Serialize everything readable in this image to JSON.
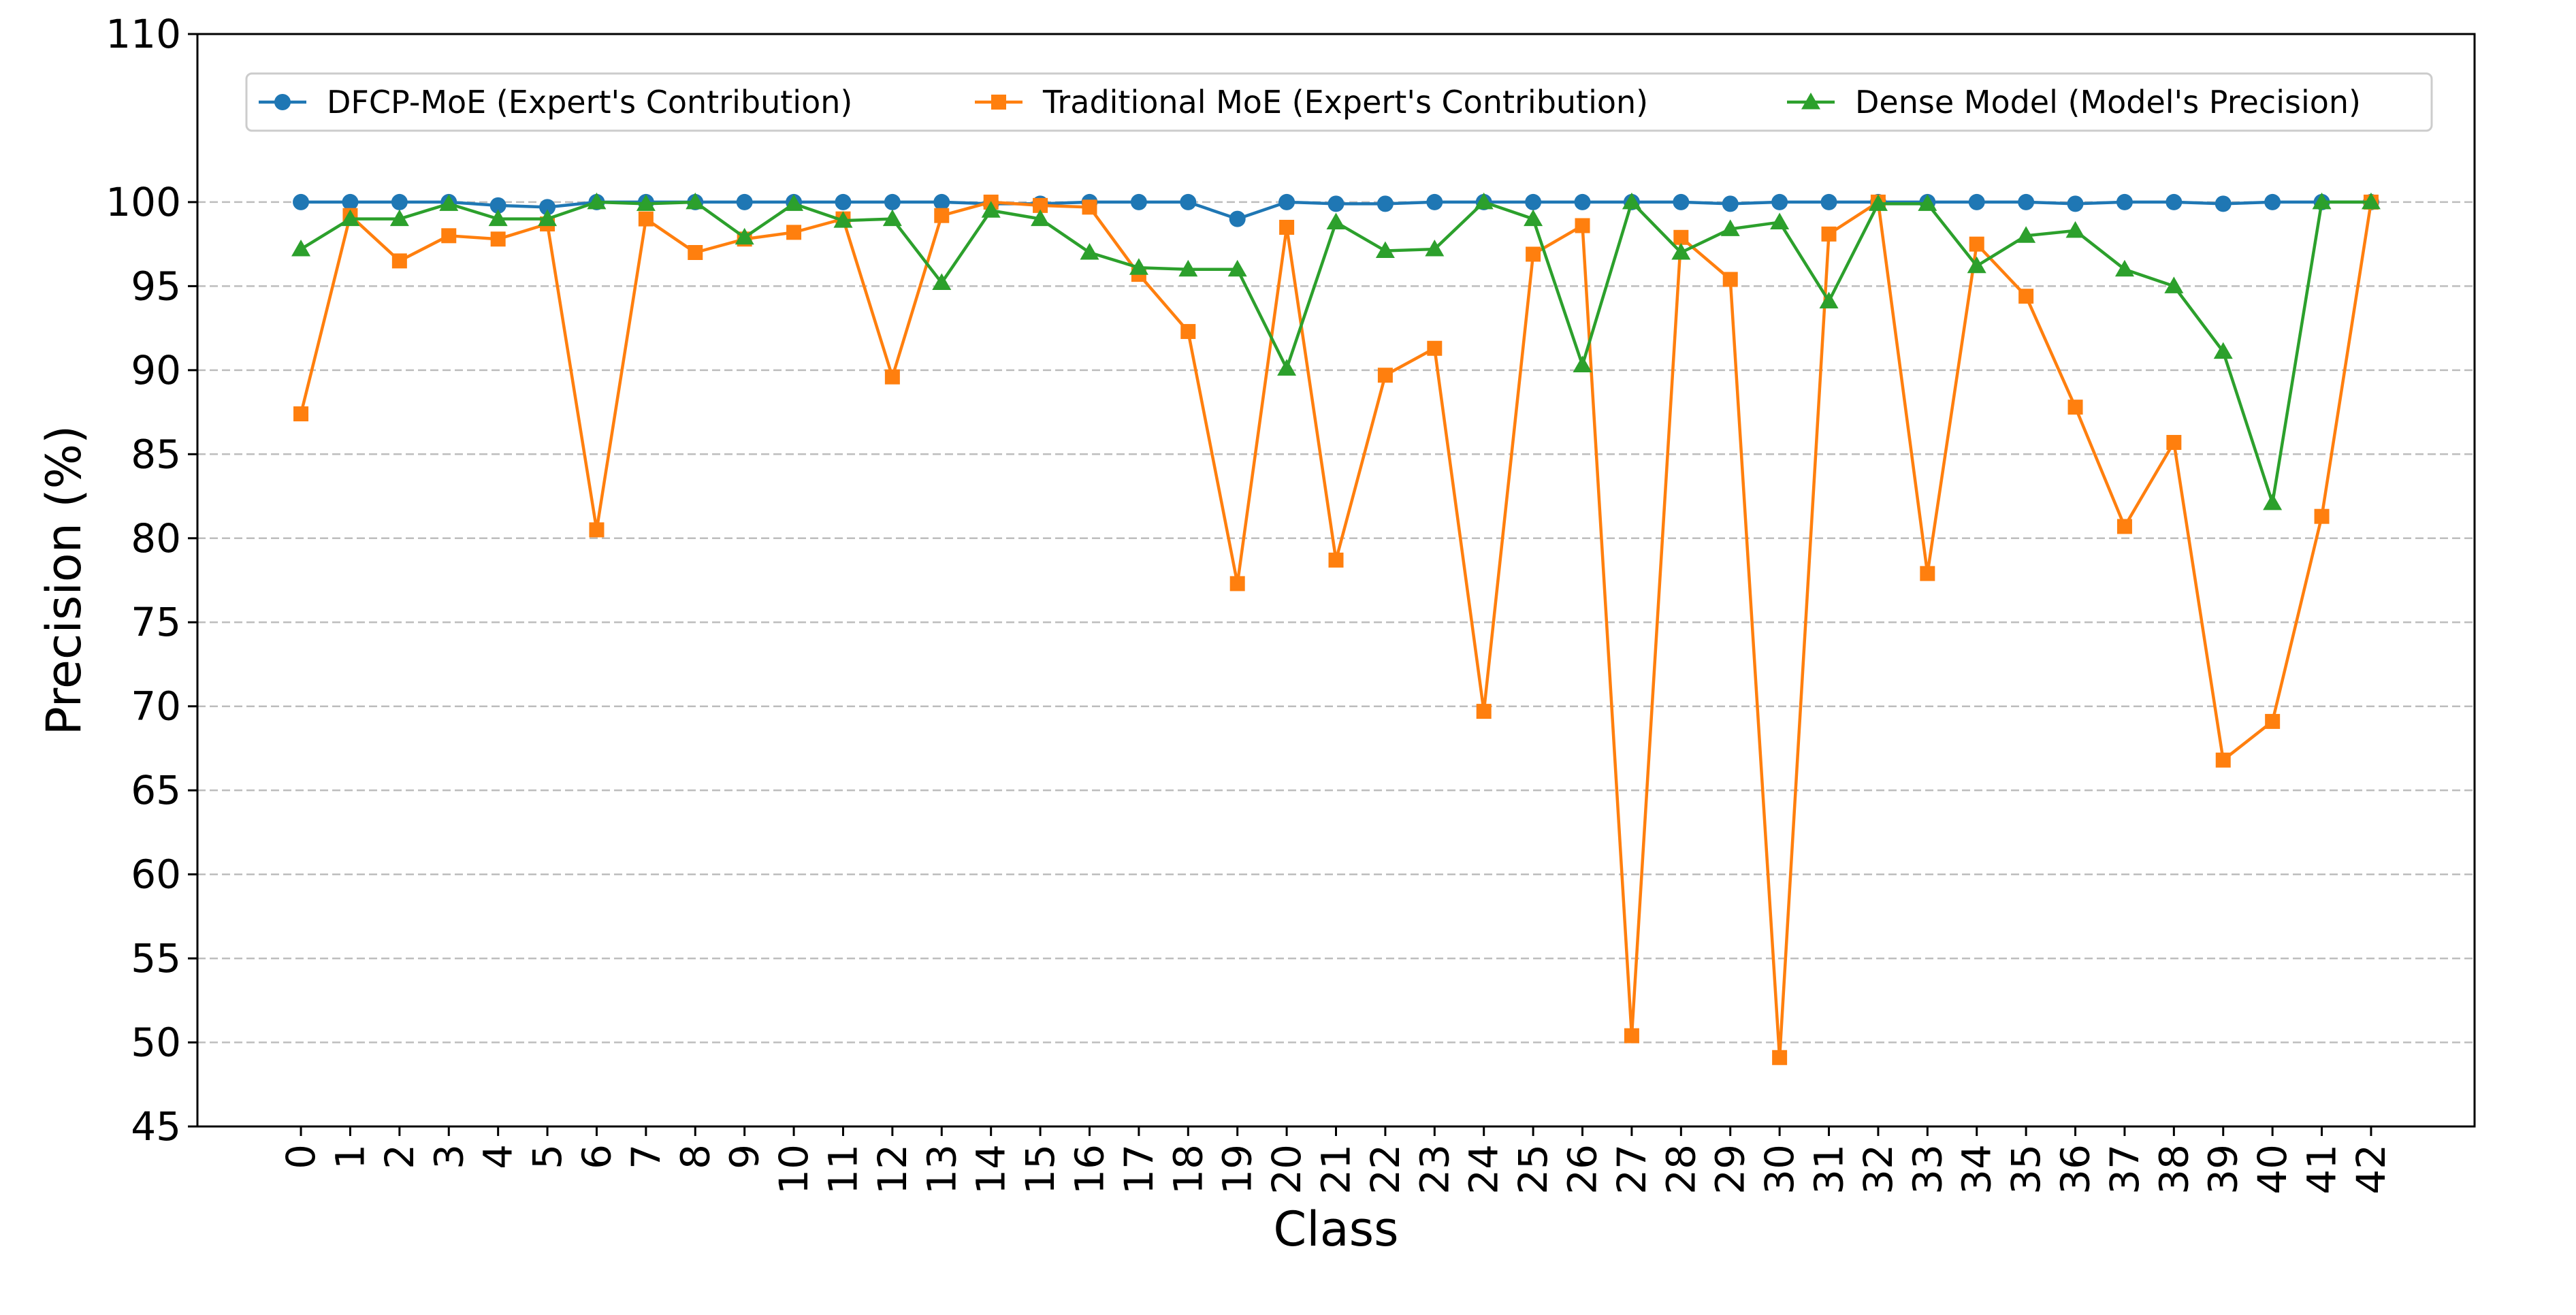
{
  "chart_data": {
    "type": "line",
    "xlabel": "Class",
    "ylabel": "Precision (%)",
    "ylim": [
      45,
      110
    ],
    "yticks": [
      45,
      50,
      55,
      60,
      65,
      70,
      75,
      80,
      85,
      90,
      95,
      100,
      110
    ],
    "ytick_labels": [
      "45",
      "50",
      "55",
      "60",
      "65",
      "70",
      "75",
      "80",
      "85",
      "90",
      "95",
      "100",
      "110"
    ],
    "x": [
      0,
      1,
      2,
      3,
      4,
      5,
      6,
      7,
      8,
      9,
      10,
      11,
      12,
      13,
      14,
      15,
      16,
      17,
      18,
      19,
      20,
      21,
      22,
      23,
      24,
      25,
      26,
      27,
      28,
      29,
      30,
      31,
      32,
      33,
      34,
      35,
      36,
      37,
      38,
      39,
      40,
      41,
      42
    ],
    "xtick_labels": [
      "0",
      "1",
      "2",
      "3",
      "4",
      "5",
      "6",
      "7",
      "8",
      "9",
      "10",
      "11",
      "12",
      "13",
      "14",
      "15",
      "16",
      "17",
      "18",
      "19",
      "20",
      "21",
      "22",
      "23",
      "24",
      "25",
      "26",
      "27",
      "28",
      "29",
      "30",
      "31",
      "32",
      "33",
      "34",
      "35",
      "36",
      "37",
      "38",
      "39",
      "40",
      "41",
      "42"
    ],
    "grid": "horizontal dashed at y ticks 50–100",
    "legend_position": "top",
    "series": [
      {
        "name": "DFCP-MoE (Expert's Contribution)",
        "color": "#1f77b4",
        "marker": "circle",
        "values": [
          100.0,
          100.0,
          100.0,
          100.0,
          99.8,
          99.7,
          100.0,
          100.0,
          100.0,
          100.0,
          100.0,
          100.0,
          100.0,
          100.0,
          99.9,
          99.9,
          100.0,
          100.0,
          100.0,
          99.0,
          100.0,
          99.9,
          99.9,
          100.0,
          100.0,
          100.0,
          100.0,
          100.0,
          100.0,
          99.9,
          100.0,
          100.0,
          100.0,
          100.0,
          100.0,
          100.0,
          99.9,
          100.0,
          100.0,
          99.9,
          100.0,
          100.0,
          100.0
        ]
      },
      {
        "name": "Traditional MoE (Expert's Contribution)",
        "color": "#ff7f0e",
        "marker": "square",
        "values": [
          87.4,
          99.2,
          96.5,
          98.0,
          97.8,
          98.7,
          80.5,
          99.0,
          97.0,
          97.8,
          98.2,
          99.0,
          89.6,
          99.2,
          100.0,
          99.8,
          99.7,
          95.7,
          92.3,
          77.3,
          98.5,
          78.7,
          89.7,
          91.3,
          69.7,
          96.9,
          98.6,
          50.4,
          97.9,
          95.4,
          49.1,
          98.1,
          100.0,
          77.9,
          97.5,
          94.4,
          87.8,
          80.7,
          85.7,
          66.8,
          69.1,
          81.3,
          100.0
        ]
      },
      {
        "name": "Dense Model (Model's Precision)",
        "color": "#2ca02c",
        "marker": "triangle",
        "values": [
          97.2,
          99.0,
          99.0,
          99.9,
          99.0,
          99.0,
          100.0,
          99.9,
          100.0,
          97.9,
          99.9,
          98.9,
          99.0,
          95.2,
          99.5,
          99.0,
          97.0,
          96.1,
          96.0,
          96.0,
          90.1,
          98.8,
          97.1,
          97.2,
          100.0,
          99.0,
          90.3,
          100.0,
          97.0,
          98.4,
          98.8,
          94.1,
          99.9,
          99.9,
          96.2,
          98.0,
          98.3,
          96.0,
          95.0,
          91.1,
          82.1,
          100.0,
          100.0
        ]
      }
    ]
  }
}
